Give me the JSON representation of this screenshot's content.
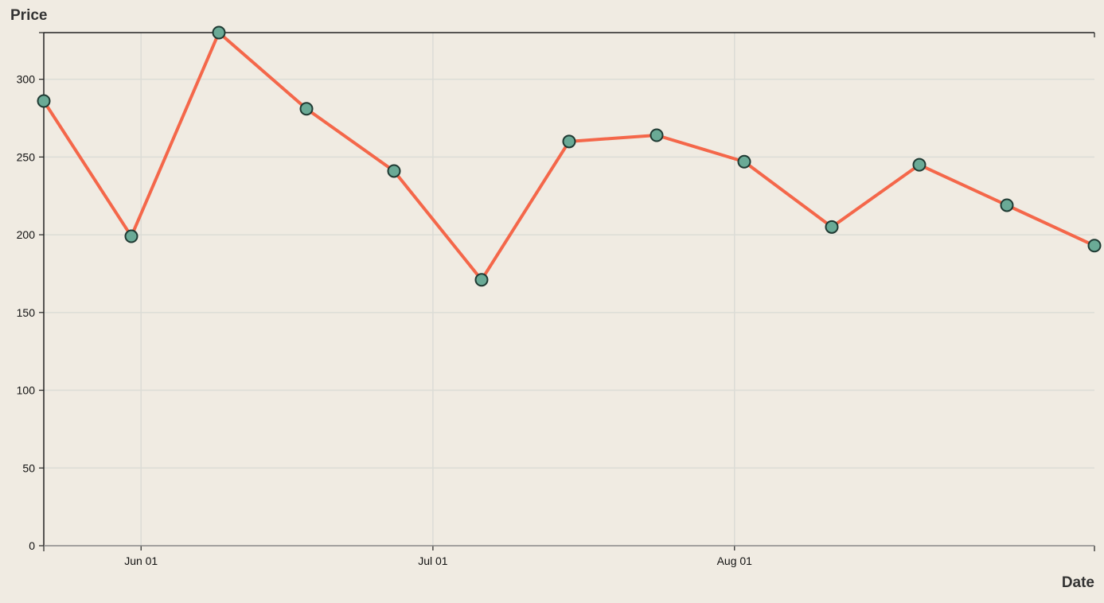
{
  "chart_data": {
    "type": "line",
    "title": "",
    "xlabel": "Date",
    "ylabel": "Price",
    "x": [
      "2025-05-22",
      "2025-05-31",
      "2025-06-09",
      "2025-06-18",
      "2025-06-27",
      "2025-07-06",
      "2025-07-15",
      "2025-07-24",
      "2025-08-02",
      "2025-08-11",
      "2025-08-20",
      "2025-08-29",
      "2025-09-07"
    ],
    "series": [
      {
        "values": [
          286,
          199,
          330,
          281,
          241,
          171,
          260,
          264,
          247,
          205,
          245,
          219,
          193
        ]
      }
    ],
    "xlim": [
      "2025-05-22",
      "2025-09-07"
    ],
    "ylim": [
      0,
      330
    ],
    "x_ticks": [
      {
        "date": "2025-06-01",
        "label": "Jun 01"
      },
      {
        "date": "2025-07-01",
        "label": "Jul 01"
      },
      {
        "date": "2025-08-01",
        "label": "Aug 01"
      }
    ],
    "y_ticks": [
      0,
      50,
      100,
      150,
      200,
      250,
      300
    ],
    "grid": true,
    "colors": {
      "line": "#f4674a",
      "marker_fill": "#6aaa96",
      "marker_stroke": "#1f3a33",
      "grid": "#dcdcd6",
      "background": "#f0ebe2"
    }
  }
}
